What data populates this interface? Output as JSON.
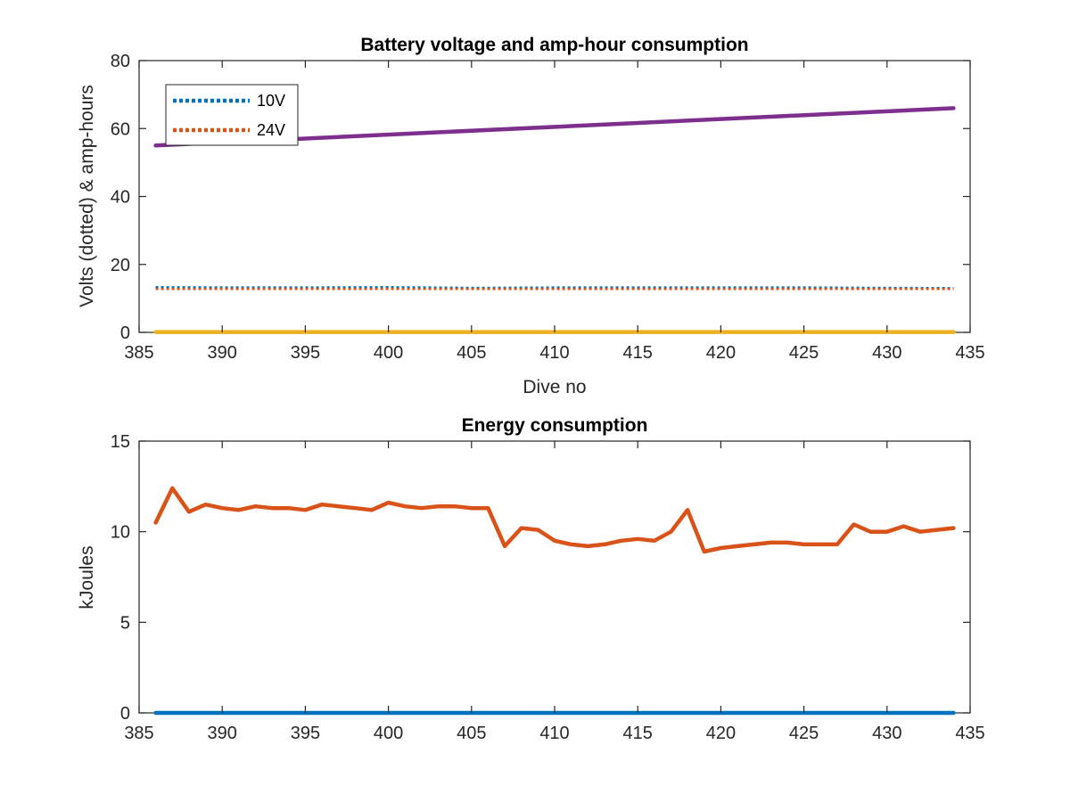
{
  "chart_data": [
    {
      "type": "line",
      "title": "Battery voltage and amp-hour consumption",
      "xlabel": "Dive no",
      "ylabel": "Volts (dotted) & amp-hours",
      "xlim": [
        385,
        435
      ],
      "ylim": [
        0,
        80
      ],
      "xticks": [
        385,
        390,
        395,
        400,
        405,
        410,
        415,
        420,
        425,
        430,
        435
      ],
      "yticks": [
        0,
        20,
        40,
        60,
        80
      ],
      "grid": false,
      "legend_position": "top-left",
      "series": [
        {
          "name": "10V",
          "style": "dotted",
          "color": "#0072BD",
          "in_legend": true,
          "x": [
            386,
            390,
            395,
            400,
            405,
            410,
            415,
            420,
            425,
            430,
            434
          ],
          "y": [
            13.3,
            13.2,
            13.2,
            13.3,
            13.1,
            13.2,
            13.2,
            13.2,
            13.2,
            13.1,
            13.0
          ]
        },
        {
          "name": "24V",
          "style": "dotted",
          "color": "#D95319",
          "in_legend": true,
          "x": [
            386,
            390,
            395,
            400,
            405,
            410,
            415,
            420,
            425,
            430,
            434
          ],
          "y": [
            12.8,
            12.8,
            12.8,
            12.8,
            12.8,
            12.8,
            12.8,
            12.8,
            12.8,
            12.8,
            12.8
          ]
        },
        {
          "name": "",
          "style": "solid",
          "color": "#EDB120",
          "in_legend": false,
          "x": [
            386,
            434
          ],
          "y": [
            0.1,
            0.1
          ]
        },
        {
          "name": "",
          "style": "solid",
          "color": "#7E2F8E",
          "in_legend": false,
          "x": [
            386,
            434
          ],
          "y": [
            55,
            66
          ]
        }
      ]
    },
    {
      "type": "line",
      "title": "Energy consumption",
      "xlabel": "",
      "ylabel": "kJoules",
      "xlim": [
        385,
        435
      ],
      "ylim": [
        0,
        15
      ],
      "xticks": [
        385,
        390,
        395,
        400,
        405,
        410,
        415,
        420,
        425,
        430,
        435
      ],
      "yticks": [
        0,
        5,
        10,
        15
      ],
      "grid": false,
      "series": [
        {
          "name": "",
          "style": "solid",
          "color": "#D95319",
          "x": [
            386,
            387,
            388,
            389,
            390,
            391,
            392,
            393,
            394,
            395,
            396,
            397,
            398,
            399,
            400,
            401,
            402,
            403,
            404,
            405,
            406,
            407,
            408,
            409,
            410,
            411,
            412,
            413,
            414,
            415,
            416,
            417,
            418,
            419,
            420,
            421,
            422,
            423,
            424,
            425,
            426,
            427,
            428,
            429,
            430,
            431,
            432,
            433,
            434
          ],
          "y": [
            10.5,
            12.4,
            11.1,
            11.5,
            11.3,
            11.2,
            11.4,
            11.3,
            11.3,
            11.2,
            11.5,
            11.4,
            11.3,
            11.2,
            11.6,
            11.4,
            11.3,
            11.4,
            11.4,
            11.3,
            11.3,
            9.2,
            10.2,
            10.1,
            9.5,
            9.3,
            9.2,
            9.3,
            9.5,
            9.6,
            9.5,
            10.0,
            11.2,
            8.9,
            9.1,
            9.2,
            9.3,
            9.4,
            9.4,
            9.3,
            9.3,
            9.3,
            10.4,
            10.0,
            10.0,
            10.3,
            10.0,
            10.1,
            10.2
          ]
        },
        {
          "name": "",
          "style": "solid",
          "color": "#0072BD",
          "x": [
            386,
            434
          ],
          "y": [
            0,
            0
          ]
        }
      ]
    }
  ]
}
